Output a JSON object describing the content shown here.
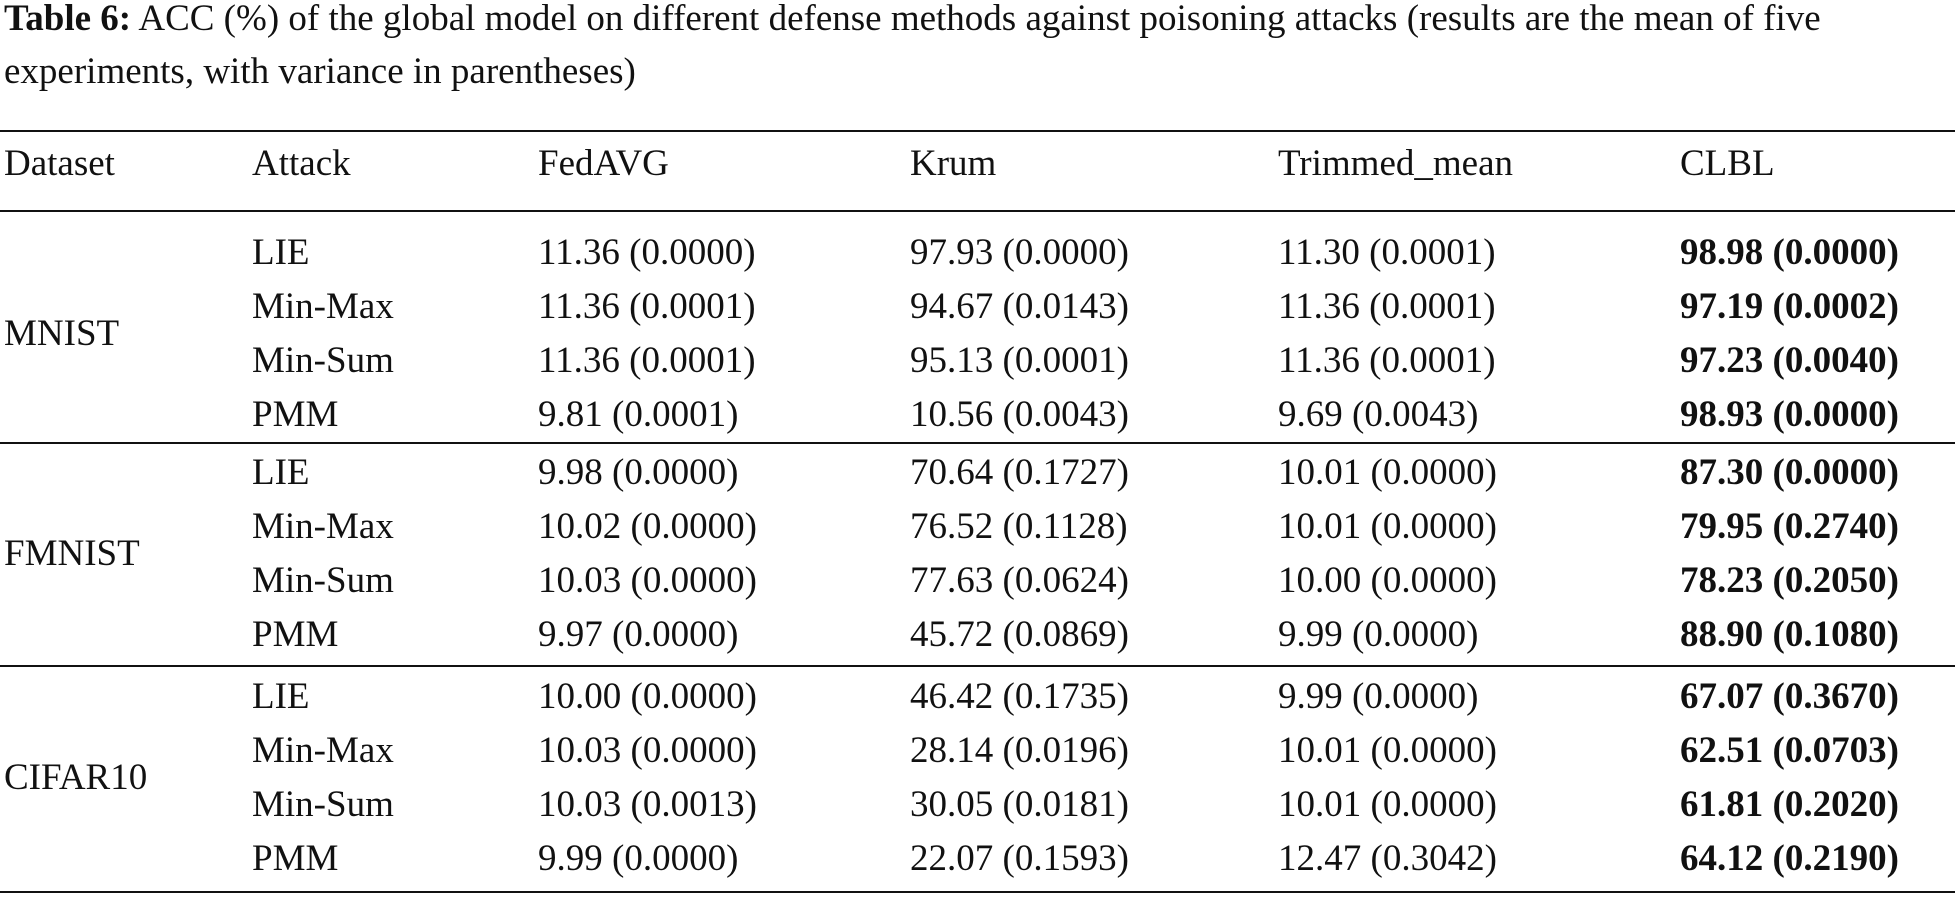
{
  "caption": {
    "label": "Table 6:",
    "text": "ACC (%) of the global model on different defense methods against poisoning attacks (results are the mean of five experiments, with variance in parentheses)"
  },
  "table": {
    "headers": [
      "Dataset",
      "Attack",
      "FedAVG",
      "Krum",
      "Trimmed_mean",
      "CLBL"
    ],
    "groups": [
      {
        "dataset": "MNIST",
        "rows": [
          {
            "attack": "LIE",
            "fedavg": "11.36 (0.0000)",
            "krum": "97.93 (0.0000)",
            "trimmed_mean": "11.30 (0.0001)",
            "clbl": "98.98 (0.0000)"
          },
          {
            "attack": "Min-Max",
            "fedavg": "11.36 (0.0001)",
            "krum": "94.67 (0.0143)",
            "trimmed_mean": "11.36 (0.0001)",
            "clbl": "97.19 (0.0002)"
          },
          {
            "attack": "Min-Sum",
            "fedavg": "11.36 (0.0001)",
            "krum": "95.13 (0.0001)",
            "trimmed_mean": "11.36 (0.0001)",
            "clbl": "97.23 (0.0040)"
          },
          {
            "attack": "PMM",
            "fedavg": "9.81 (0.0001)",
            "krum": "10.56 (0.0043)",
            "trimmed_mean": "9.69 (0.0043)",
            "clbl": "98.93 (0.0000)"
          }
        ]
      },
      {
        "dataset": "FMNIST",
        "rows": [
          {
            "attack": "LIE",
            "fedavg": "9.98 (0.0000)",
            "krum": "70.64 (0.1727)",
            "trimmed_mean": "10.01 (0.0000)",
            "clbl": "87.30 (0.0000)"
          },
          {
            "attack": "Min-Max",
            "fedavg": "10.02 (0.0000)",
            "krum": "76.52 (0.1128)",
            "trimmed_mean": "10.01 (0.0000)",
            "clbl": "79.95 (0.2740)"
          },
          {
            "attack": "Min-Sum",
            "fedavg": "10.03 (0.0000)",
            "krum": "77.63 (0.0624)",
            "trimmed_mean": "10.00 (0.0000)",
            "clbl": "78.23 (0.2050)"
          },
          {
            "attack": "PMM",
            "fedavg": "9.97 (0.0000)",
            "krum": "45.72 (0.0869)",
            "trimmed_mean": "9.99 (0.0000)",
            "clbl": "88.90 (0.1080)"
          }
        ]
      },
      {
        "dataset": "CIFAR10",
        "rows": [
          {
            "attack": "LIE",
            "fedavg": "10.00 (0.0000)",
            "krum": "46.42 (0.1735)",
            "trimmed_mean": "9.99 (0.0000)",
            "clbl": "67.07 (0.3670)"
          },
          {
            "attack": "Min-Max",
            "fedavg": "10.03 (0.0000)",
            "krum": "28.14 (0.0196)",
            "trimmed_mean": "10.01 (0.0000)",
            "clbl": "62.51 (0.0703)"
          },
          {
            "attack": "Min-Sum",
            "fedavg": "10.03 (0.0013)",
            "krum": "30.05 (0.0181)",
            "trimmed_mean": "10.01 (0.0000)",
            "clbl": "61.81 (0.2020)"
          },
          {
            "attack": "PMM",
            "fedavg": "9.99 (0.0000)",
            "krum": "22.07 (0.1593)",
            "trimmed_mean": "12.47 (0.3042)",
            "clbl": "64.12 (0.2190)"
          }
        ]
      }
    ]
  }
}
